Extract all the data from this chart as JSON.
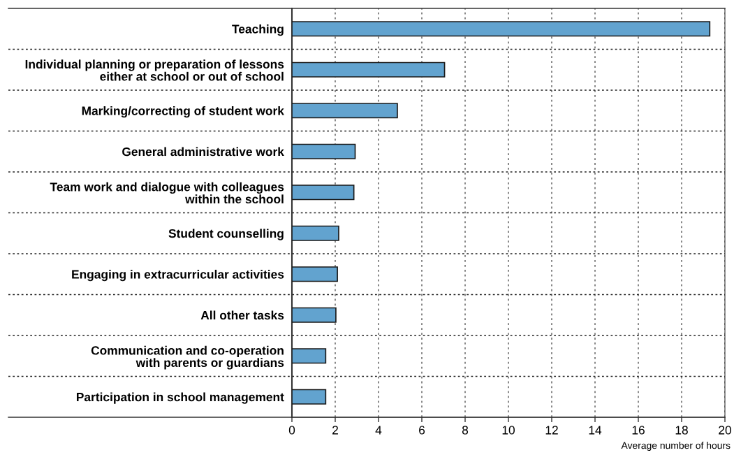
{
  "chart_data": {
    "type": "bar",
    "orientation": "horizontal",
    "xlabel": "Average number of hours",
    "categories": [
      "Teaching",
      "Individual planning or preparation of lessons\neither at school or out of school",
      "Marking/correcting of student work",
      "General administrative work",
      "Team work and dialogue with colleagues\nwithin the school",
      "Student counselling",
      "Engaging in extracurricular activities",
      "All other tasks",
      "Communication and co-operation\nwith parents or guardians",
      "Participation in school management"
    ],
    "values": [
      19.3,
      7.05,
      4.87,
      2.92,
      2.86,
      2.16,
      2.1,
      2.03,
      1.56,
      1.56
    ],
    "color": "#62a3cf",
    "xlim": [
      0,
      20
    ],
    "xticks": [
      0,
      2,
      4,
      6,
      8,
      10,
      12,
      14,
      16,
      18,
      20
    ],
    "grid": "x"
  }
}
